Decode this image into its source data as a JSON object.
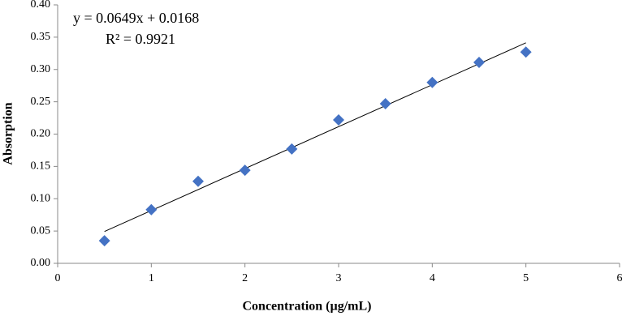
{
  "chart_data": {
    "type": "scatter",
    "xlabel": "Concentration (µg/mL)",
    "ylabel": "Absorption",
    "x": [
      0.5,
      1,
      1.5,
      2,
      2.5,
      3,
      3.5,
      4,
      4.5,
      5
    ],
    "series": [
      {
        "color": "#4472c4",
        "values": [
          0.035,
          0.083,
          0.127,
          0.144,
          0.177,
          0.222,
          0.247,
          0.28,
          0.311,
          0.327
        ]
      }
    ],
    "trendline": {
      "equation": "y = 0.0649x + 0.0168",
      "r_squared": "R² = 0.9921",
      "slope": 0.0649,
      "intercept": 0.0168,
      "color": "#000000"
    },
    "xlim": [
      0,
      6
    ],
    "xticks": [
      0,
      1,
      2,
      3,
      4,
      5,
      6
    ],
    "ylim": [
      0,
      0.4
    ],
    "yticks": [
      {
        "value": 0,
        "label": "0.00"
      },
      {
        "value": 0.05,
        "label": "0.05"
      },
      {
        "value": 0.1,
        "label": "0.10"
      },
      {
        "value": 0.15,
        "label": "0.15"
      },
      {
        "value": 0.2,
        "label": "0.20"
      },
      {
        "value": 0.25,
        "label": "0.25"
      },
      {
        "value": 0.3,
        "label": "0.30"
      },
      {
        "value": 0.35,
        "label": "0.35"
      },
      {
        "value": 0.4,
        "label": "0.40"
      }
    ],
    "grid": false
  }
}
